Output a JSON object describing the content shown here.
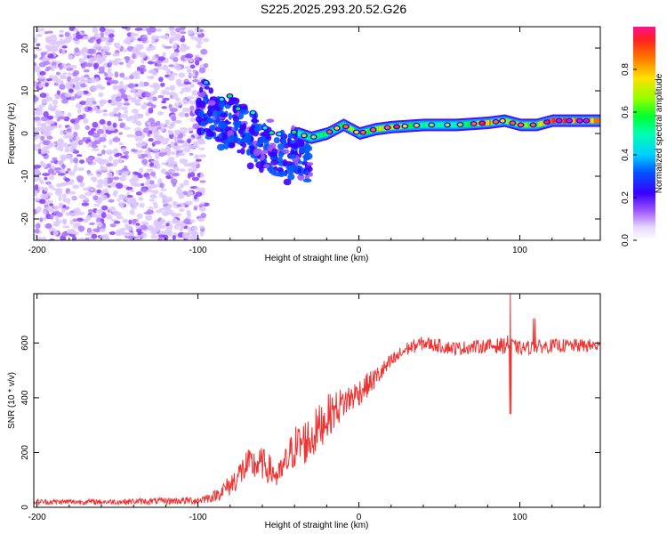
{
  "title": "S225.2025.293.20.52.G26",
  "chart_data": [
    {
      "type": "heatmap",
      "xlabel": "Height of straight line (km)",
      "ylabel": "Frequency (Hz)",
      "xlim": [
        -202,
        150
      ],
      "ylim": [
        -25,
        25
      ],
      "xticks": [
        -200,
        -100,
        0,
        100
      ],
      "xtick_labels": [
        "-200",
        "-100",
        "0",
        "100"
      ],
      "yticks": [
        20,
        10,
        0,
        -10,
        -20
      ],
      "ytick_labels": [
        "20",
        "10",
        "0",
        "-10",
        "-20"
      ],
      "colorbar": {
        "label": "Normalized spectral amplitude",
        "range": [
          0,
          1
        ],
        "ticks": [
          0.0,
          0.2,
          0.4,
          0.6,
          0.8
        ],
        "tick_labels": [
          "0.0",
          "0.2",
          "0.4",
          "0.6",
          "0.8"
        ]
      },
      "ridge": {
        "x": [
          -95,
          -85,
          -75,
          -65,
          -55,
          -45,
          -38,
          -30,
          -20,
          -10,
          0,
          10,
          20,
          40,
          60,
          80,
          90,
          100,
          110,
          120,
          150
        ],
        "freq": [
          11,
          8,
          6,
          3,
          1,
          0,
          0,
          -1,
          0,
          2,
          0,
          1,
          1.5,
          2,
          2,
          2.5,
          3,
          2,
          2,
          3,
          3
        ],
        "amplitude": [
          0.25,
          0.3,
          0.3,
          0.3,
          0.3,
          0.35,
          0.45,
          0.5,
          0.55,
          0.6,
          0.6,
          0.65,
          0.7,
          0.5,
          0.45,
          0.8,
          0.6,
          0.7,
          0.6,
          0.9,
          0.8
        ]
      }
    },
    {
      "type": "line",
      "xlabel": "Height of straight line (km)",
      "ylabel": "SNR (10 * v/v)",
      "xlim": [
        -202,
        150
      ],
      "ylim": [
        0,
        780
      ],
      "xticks": [
        -200,
        -100,
        0,
        100
      ],
      "xtick_labels": [
        "-200",
        "-100",
        "0",
        "100"
      ],
      "yticks": [
        0,
        200,
        400,
        600
      ],
      "ytick_labels": [
        "0",
        "200",
        "400",
        "600"
      ],
      "series": [
        {
          "name": "SNR",
          "color": "#ee3333",
          "envelope_x": [
            -202,
            -150,
            -100,
            -90,
            -80,
            -70,
            -60,
            -50,
            -40,
            -30,
            -20,
            -10,
            0,
            10,
            20,
            30,
            40,
            60,
            80,
            90,
            93,
            96,
            100,
            120,
            150
          ],
          "envelope_mean": [
            20,
            20,
            25,
            40,
            80,
            150,
            160,
            110,
            220,
            250,
            330,
            380,
            420,
            470,
            530,
            580,
            600,
            580,
            590,
            590,
            600,
            590,
            580,
            590,
            590
          ],
          "envelope_amp": [
            10,
            10,
            15,
            20,
            40,
            60,
            60,
            50,
            80,
            90,
            80,
            60,
            50,
            40,
            30,
            25,
            25,
            25,
            25,
            30,
            30,
            25,
            25,
            25,
            25
          ],
          "spikes": [
            {
              "x": 94,
              "min": 340,
              "max": 780
            },
            {
              "x": 109,
              "min": 570,
              "max": 690
            }
          ]
        }
      ]
    }
  ]
}
